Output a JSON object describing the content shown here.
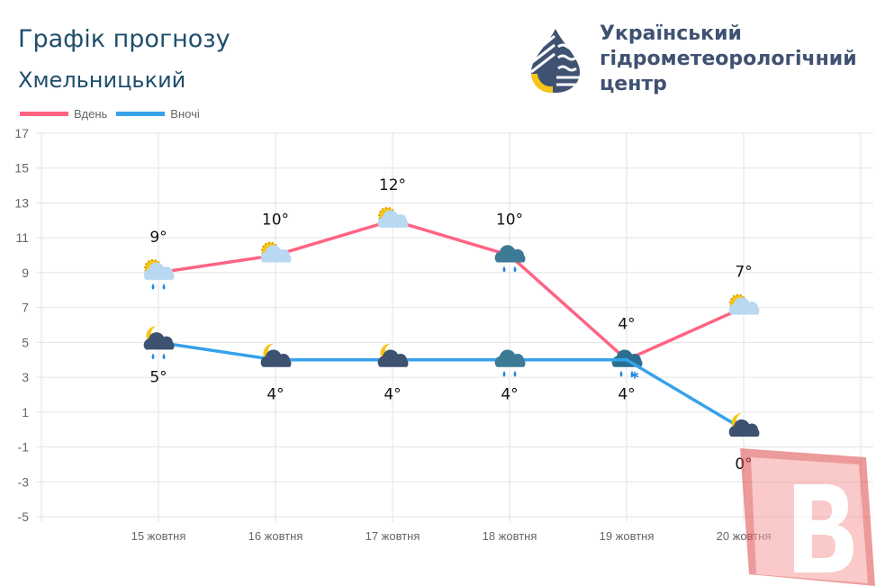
{
  "header": {
    "title": "Графік прогнозу",
    "city": "Хмельницький"
  },
  "logo": {
    "org_line1": "Український",
    "org_line2": "гідрометеорологічний",
    "org_line3": "центр"
  },
  "watermark": {
    "letter": "В",
    "color": "#f25c5c"
  },
  "chart_data": {
    "type": "line",
    "categories": [
      "15 жовтня",
      "16 жовтня",
      "17 жовтня",
      "18 жовтня",
      "19 жовтня",
      "20 жовтня"
    ],
    "series": [
      {
        "name": "Вдень",
        "color": "#ff6384",
        "values": [
          9,
          10,
          12,
          10,
          4,
          7
        ],
        "labels": [
          "9°",
          "10°",
          "12°",
          "10°",
          "4°",
          "7°"
        ],
        "icons": [
          "sun-cloud-rain",
          "sun-cloud",
          "sun-cloud",
          "cloud-rain",
          "cloud-rain-snow",
          "sun-cloud"
        ]
      },
      {
        "name": "Вночі",
        "color": "#36a2eb",
        "values": [
          5,
          4,
          4,
          4,
          4,
          0
        ],
        "labels": [
          "5°",
          "4°",
          "4°",
          "4°",
          "4°",
          "0°"
        ],
        "icons": [
          "moon-cloud-rain",
          "moon-cloud",
          "moon-cloud",
          "cloud-rain",
          "cloud-rain-snow",
          "moon-cloud"
        ]
      }
    ],
    "yticks": [
      17,
      15,
      13,
      11,
      9,
      7,
      5,
      3,
      1,
      -1,
      -3,
      -5
    ],
    "ylim": [
      -5,
      17
    ],
    "grid": true,
    "legend": "top-left"
  }
}
